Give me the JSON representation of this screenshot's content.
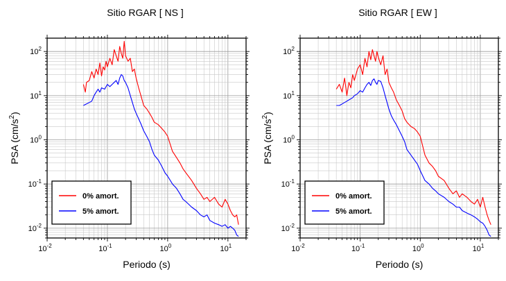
{
  "chart_data": [
    {
      "type": "line",
      "title": "Sitio RGAR [ NS ]",
      "xlabel": "Periodo (s)",
      "ylabel_main": "PSA (cm/s",
      "ylabel_sup": "2",
      "ylabel_tail": ")",
      "x_scale": "log",
      "y_scale": "log",
      "xlim": [
        0.01,
        20
      ],
      "ylim": [
        0.006,
        200
      ],
      "grid": true,
      "legend_position": "bottom-left",
      "x_ticks": [
        {
          "base": "10",
          "exp": "-2",
          "value": 0.01
        },
        {
          "base": "10",
          "exp": "-1",
          "value": 0.1
        },
        {
          "base": "10",
          "exp": "0",
          "value": 1
        },
        {
          "base": "10",
          "exp": "1",
          "value": 10
        }
      ],
      "y_ticks": [
        {
          "base": "10",
          "exp": "-2",
          "value": 0.01
        },
        {
          "base": "10",
          "exp": "-1",
          "value": 0.1
        },
        {
          "base": "10",
          "exp": "0",
          "value": 1
        },
        {
          "base": "10",
          "exp": "1",
          "value": 10
        },
        {
          "base": "10",
          "exp": "2",
          "value": 100
        }
      ],
      "series": [
        {
          "name": "0% amort.",
          "color": "#ff0000",
          "x": [
            0.04,
            0.043,
            0.045,
            0.05,
            0.055,
            0.06,
            0.065,
            0.07,
            0.075,
            0.08,
            0.085,
            0.09,
            0.095,
            0.1,
            0.11,
            0.12,
            0.13,
            0.14,
            0.15,
            0.16,
            0.17,
            0.18,
            0.19,
            0.2,
            0.22,
            0.24,
            0.26,
            0.28,
            0.3,
            0.33,
            0.36,
            0.4,
            0.45,
            0.5,
            0.55,
            0.6,
            0.7,
            0.8,
            0.9,
            1.0,
            1.2,
            1.4,
            1.6,
            1.8,
            2.0,
            2.5,
            3.0,
            3.5,
            4.0,
            4.5,
            5.0,
            6.0,
            7.0,
            8.0,
            9.0,
            10.0,
            11.0,
            12.0,
            13.0,
            14.0,
            15.0
          ],
          "y": [
            18,
            12,
            20,
            22,
            35,
            25,
            40,
            30,
            55,
            28,
            45,
            38,
            60,
            45,
            70,
            50,
            110,
            80,
            60,
            130,
            90,
            70,
            170,
            80,
            60,
            70,
            35,
            40,
            25,
            15,
            10,
            6,
            5,
            4,
            3.2,
            2.5,
            2.2,
            1.8,
            1.5,
            1.2,
            0.55,
            0.4,
            0.3,
            0.22,
            0.18,
            0.12,
            0.08,
            0.06,
            0.045,
            0.05,
            0.04,
            0.05,
            0.035,
            0.03,
            0.045,
            0.035,
            0.025,
            0.02,
            0.018,
            0.02,
            0.012
          ]
        },
        {
          "name": "5% amort.",
          "color": "#0000ff",
          "x": [
            0.04,
            0.045,
            0.05,
            0.055,
            0.06,
            0.065,
            0.07,
            0.075,
            0.08,
            0.09,
            0.1,
            0.11,
            0.12,
            0.13,
            0.14,
            0.15,
            0.16,
            0.17,
            0.18,
            0.19,
            0.2,
            0.22,
            0.24,
            0.26,
            0.28,
            0.3,
            0.33,
            0.36,
            0.4,
            0.45,
            0.5,
            0.55,
            0.6,
            0.7,
            0.8,
            0.9,
            1.0,
            1.2,
            1.4,
            1.6,
            1.8,
            2.0,
            2.5,
            3.0,
            3.5,
            4.0,
            4.5,
            5.0,
            6.0,
            7.0,
            8.0,
            9.0,
            10.0,
            11.0,
            12.0,
            13.0,
            14.0,
            15.0
          ],
          "y": [
            6,
            6.5,
            7,
            7.5,
            10,
            12,
            14,
            12,
            15,
            14,
            18,
            16,
            18,
            20,
            22,
            18,
            25,
            30,
            28,
            22,
            20,
            15,
            10,
            7,
            5,
            4,
            3,
            2.3,
            1.6,
            1.2,
            0.9,
            0.6,
            0.45,
            0.35,
            0.25,
            0.18,
            0.15,
            0.1,
            0.08,
            0.06,
            0.045,
            0.04,
            0.03,
            0.025,
            0.02,
            0.018,
            0.02,
            0.015,
            0.013,
            0.012,
            0.011,
            0.012,
            0.01,
            0.011,
            0.01,
            0.009,
            0.007,
            0.0065
          ]
        }
      ]
    },
    {
      "type": "line",
      "title": "Sitio RGAR [ EW ]",
      "xlabel": "Periodo (s)",
      "ylabel_main": "PSA (cm/s",
      "ylabel_sup": "2",
      "ylabel_tail": ")",
      "x_scale": "log",
      "y_scale": "log",
      "xlim": [
        0.01,
        20
      ],
      "ylim": [
        0.006,
        200
      ],
      "grid": true,
      "legend_position": "bottom-left",
      "x_ticks": [
        {
          "base": "10",
          "exp": "-2",
          "value": 0.01
        },
        {
          "base": "10",
          "exp": "-1",
          "value": 0.1
        },
        {
          "base": "10",
          "exp": "0",
          "value": 1
        },
        {
          "base": "10",
          "exp": "1",
          "value": 10
        }
      ],
      "y_ticks": [
        {
          "base": "10",
          "exp": "-2",
          "value": 0.01
        },
        {
          "base": "10",
          "exp": "-1",
          "value": 0.1
        },
        {
          "base": "10",
          "exp": "0",
          "value": 1
        },
        {
          "base": "10",
          "exp": "1",
          "value": 10
        },
        {
          "base": "10",
          "exp": "2",
          "value": 100
        }
      ],
      "series": [
        {
          "name": "0% amort.",
          "color": "#ff0000",
          "x": [
            0.04,
            0.045,
            0.05,
            0.055,
            0.06,
            0.065,
            0.07,
            0.075,
            0.08,
            0.09,
            0.1,
            0.11,
            0.12,
            0.13,
            0.14,
            0.15,
            0.16,
            0.17,
            0.18,
            0.19,
            0.2,
            0.22,
            0.24,
            0.26,
            0.28,
            0.3,
            0.33,
            0.36,
            0.4,
            0.45,
            0.5,
            0.55,
            0.6,
            0.7,
            0.8,
            0.9,
            1.0,
            1.2,
            1.4,
            1.6,
            1.8,
            2.0,
            2.5,
            3.0,
            3.5,
            4.0,
            4.5,
            5.0,
            6.0,
            7.0,
            8.0,
            9.0,
            10.0,
            11.0,
            12.0,
            13.0,
            14.0,
            15.0
          ],
          "y": [
            14,
            18,
            12,
            25,
            10,
            20,
            15,
            30,
            22,
            40,
            50,
            30,
            70,
            45,
            100,
            65,
            110,
            80,
            60,
            100,
            75,
            50,
            80,
            30,
            40,
            20,
            15,
            12,
            8,
            6,
            4.5,
            3,
            2.5,
            2,
            1.8,
            1.5,
            1.2,
            0.45,
            0.3,
            0.25,
            0.2,
            0.15,
            0.12,
            0.08,
            0.06,
            0.07,
            0.05,
            0.06,
            0.05,
            0.04,
            0.035,
            0.045,
            0.03,
            0.05,
            0.03,
            0.02,
            0.015,
            0.012
          ]
        },
        {
          "name": "5% amort.",
          "color": "#0000ff",
          "x": [
            0.04,
            0.045,
            0.05,
            0.055,
            0.06,
            0.065,
            0.07,
            0.075,
            0.08,
            0.09,
            0.1,
            0.11,
            0.12,
            0.13,
            0.14,
            0.15,
            0.16,
            0.17,
            0.18,
            0.19,
            0.2,
            0.22,
            0.24,
            0.26,
            0.28,
            0.3,
            0.33,
            0.36,
            0.4,
            0.45,
            0.5,
            0.55,
            0.6,
            0.7,
            0.8,
            0.9,
            1.0,
            1.2,
            1.4,
            1.6,
            1.8,
            2.0,
            2.5,
            3.0,
            3.5,
            4.0,
            4.5,
            5.0,
            6.0,
            7.0,
            8.0,
            9.0,
            10.0,
            11.0,
            12.0,
            13.0,
            14.0,
            15.0
          ],
          "y": [
            6,
            6,
            6.5,
            7,
            7.5,
            8,
            8.5,
            9,
            10,
            11,
            13,
            12,
            15,
            18,
            20,
            17,
            22,
            24,
            20,
            18,
            22,
            21,
            15,
            10,
            7,
            5,
            3.5,
            2.8,
            2.2,
            1.6,
            1.2,
            0.9,
            0.6,
            0.45,
            0.35,
            0.28,
            0.2,
            0.12,
            0.1,
            0.08,
            0.07,
            0.06,
            0.05,
            0.04,
            0.035,
            0.03,
            0.03,
            0.025,
            0.022,
            0.02,
            0.018,
            0.016,
            0.014,
            0.013,
            0.011,
            0.009,
            0.007,
            0.0065
          ]
        }
      ]
    }
  ]
}
